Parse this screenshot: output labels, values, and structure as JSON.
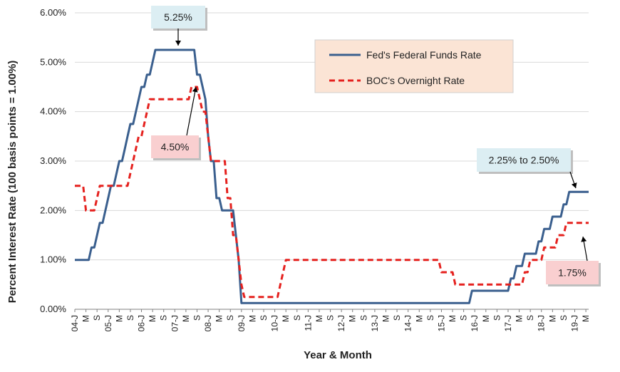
{
  "chart_data": {
    "type": "line",
    "xlabel": "Year & Month",
    "ylabel": "Percent Interest Rate (100 basis points = 1.00%)",
    "ylim": [
      0,
      6
    ],
    "y_ticks": [
      "0.00%",
      "1.00%",
      "2.00%",
      "3.00%",
      "4.00%",
      "5.00%",
      "6.00%"
    ],
    "y_tick_values": [
      0,
      1,
      2,
      3,
      4,
      5,
      6
    ],
    "grid": "horizontal",
    "legend_position": "top-right",
    "x_tick_labels": [
      "04-J",
      "M",
      "S",
      "05-J",
      "M",
      "S",
      "06-J",
      "M",
      "S",
      "07-J",
      "M",
      "S",
      "08-J",
      "M",
      "S",
      "09-J",
      "M",
      "S",
      "10-J",
      "M",
      "S",
      "11-J",
      "M",
      "S",
      "12-J",
      "M",
      "S",
      "13-J",
      "M",
      "S",
      "14-J",
      "M",
      "S",
      "15-J",
      "M",
      "S",
      "16-J",
      "M",
      "S",
      "17-J",
      "M",
      "S",
      "18-J",
      "M",
      "S",
      "19-J",
      "M"
    ],
    "x_tick_month_index": [
      0,
      4,
      8,
      12,
      16,
      20,
      24,
      28,
      32,
      36,
      40,
      44,
      48,
      52,
      56,
      60,
      64,
      68,
      72,
      76,
      80,
      84,
      88,
      92,
      96,
      100,
      104,
      108,
      112,
      116,
      120,
      124,
      128,
      132,
      136,
      140,
      144,
      148,
      152,
      156,
      160,
      164,
      168,
      172,
      176,
      180,
      184
    ],
    "x_month_range": [
      0,
      185
    ],
    "series": [
      {
        "name": "Fed's Federal Funds Rate",
        "color": "#3A5F8E",
        "style": "solid",
        "points": [
          [
            0,
            1.0
          ],
          [
            5,
            1.0
          ],
          [
            6,
            1.25
          ],
          [
            7,
            1.25
          ],
          [
            8,
            1.5
          ],
          [
            9,
            1.75
          ],
          [
            10,
            1.75
          ],
          [
            11,
            2.0
          ],
          [
            12,
            2.25
          ],
          [
            13,
            2.5
          ],
          [
            14,
            2.5
          ],
          [
            15,
            2.75
          ],
          [
            16,
            3.0
          ],
          [
            17,
            3.0
          ],
          [
            18,
            3.25
          ],
          [
            19,
            3.5
          ],
          [
            20,
            3.75
          ],
          [
            21,
            3.75
          ],
          [
            22,
            4.0
          ],
          [
            23,
            4.25
          ],
          [
            24,
            4.5
          ],
          [
            25,
            4.5
          ],
          [
            26,
            4.75
          ],
          [
            27,
            4.75
          ],
          [
            28,
            5.0
          ],
          [
            29,
            5.25
          ],
          [
            43,
            5.25
          ],
          [
            44,
            4.75
          ],
          [
            45,
            4.75
          ],
          [
            46,
            4.5
          ],
          [
            47,
            4.25
          ],
          [
            48,
            3.5
          ],
          [
            49,
            3.0
          ],
          [
            50,
            3.0
          ],
          [
            51,
            2.25
          ],
          [
            52,
            2.25
          ],
          [
            53,
            2.0
          ],
          [
            57,
            2.0
          ],
          [
            58,
            1.5
          ],
          [
            59,
            1.0
          ],
          [
            60,
            0.125
          ],
          [
            142,
            0.125
          ],
          [
            143,
            0.375
          ],
          [
            155,
            0.375
          ],
          [
            156,
            0.375
          ],
          [
            157,
            0.625
          ],
          [
            158,
            0.625
          ],
          [
            159,
            0.875
          ],
          [
            160,
            0.875
          ],
          [
            161,
            0.875
          ],
          [
            162,
            1.125
          ],
          [
            165,
            1.125
          ],
          [
            166,
            1.125
          ],
          [
            167,
            1.375
          ],
          [
            168,
            1.375
          ],
          [
            169,
            1.625
          ],
          [
            170,
            1.625
          ],
          [
            171,
            1.625
          ],
          [
            172,
            1.875
          ],
          [
            173,
            1.875
          ],
          [
            174,
            1.875
          ],
          [
            175,
            1.875
          ],
          [
            176,
            2.125
          ],
          [
            177,
            2.125
          ],
          [
            178,
            2.375
          ],
          [
            185,
            2.375
          ]
        ]
      },
      {
        "name": "BOC's Overnight Rate",
        "color": "#E5211E",
        "style": "dashed",
        "points": [
          [
            0,
            2.5
          ],
          [
            3,
            2.5
          ],
          [
            4,
            2.0
          ],
          [
            7,
            2.0
          ],
          [
            8,
            2.25
          ],
          [
            9,
            2.5
          ],
          [
            19,
            2.5
          ],
          [
            20,
            2.75
          ],
          [
            21,
            3.0
          ],
          [
            22,
            3.25
          ],
          [
            23,
            3.5
          ],
          [
            24,
            3.5
          ],
          [
            25,
            3.75
          ],
          [
            26,
            4.0
          ],
          [
            27,
            4.25
          ],
          [
            41,
            4.25
          ],
          [
            42,
            4.5
          ],
          [
            44,
            4.5
          ],
          [
            45,
            4.25
          ],
          [
            46,
            4.0
          ],
          [
            47,
            4.0
          ],
          [
            48,
            3.5
          ],
          [
            49,
            3.0
          ],
          [
            54,
            3.0
          ],
          [
            55,
            2.25
          ],
          [
            56,
            2.25
          ],
          [
            57,
            1.5
          ],
          [
            58,
            1.5
          ],
          [
            59,
            1.0
          ],
          [
            60,
            0.5
          ],
          [
            61,
            0.25
          ],
          [
            72,
            0.25
          ],
          [
            73,
            0.25
          ],
          [
            74,
            0.5
          ],
          [
            75,
            0.75
          ],
          [
            76,
            1.0
          ],
          [
            131,
            1.0
          ],
          [
            132,
            0.75
          ],
          [
            136,
            0.75
          ],
          [
            137,
            0.5
          ],
          [
            149,
            0.5
          ],
          [
            150,
            0.5
          ],
          [
            151,
            0.5
          ],
          [
            160,
            0.5
          ],
          [
            161,
            0.5
          ],
          [
            162,
            0.75
          ],
          [
            163,
            0.75
          ],
          [
            164,
            1.0
          ],
          [
            168,
            1.0
          ],
          [
            169,
            1.25
          ],
          [
            173,
            1.25
          ],
          [
            174,
            1.5
          ],
          [
            175,
            1.5
          ],
          [
            176,
            1.5
          ],
          [
            177,
            1.75
          ],
          [
            185,
            1.75
          ]
        ]
      }
    ],
    "annotations": [
      {
        "text": "5.25%",
        "month": 36,
        "value": 5.25,
        "fill": "#DCEEF3"
      },
      {
        "text": "4.50%",
        "month": 42,
        "value": 4.5,
        "fill": "#F9CFD0"
      },
      {
        "text": "2.25% to 2.50%",
        "month": 181,
        "value": 2.375,
        "fill": "#DCEEF3"
      },
      {
        "text": "1.75%",
        "month": 182,
        "value": 1.75,
        "fill": "#F9CFD0"
      }
    ],
    "legend_fill": "#FBE4D5"
  }
}
